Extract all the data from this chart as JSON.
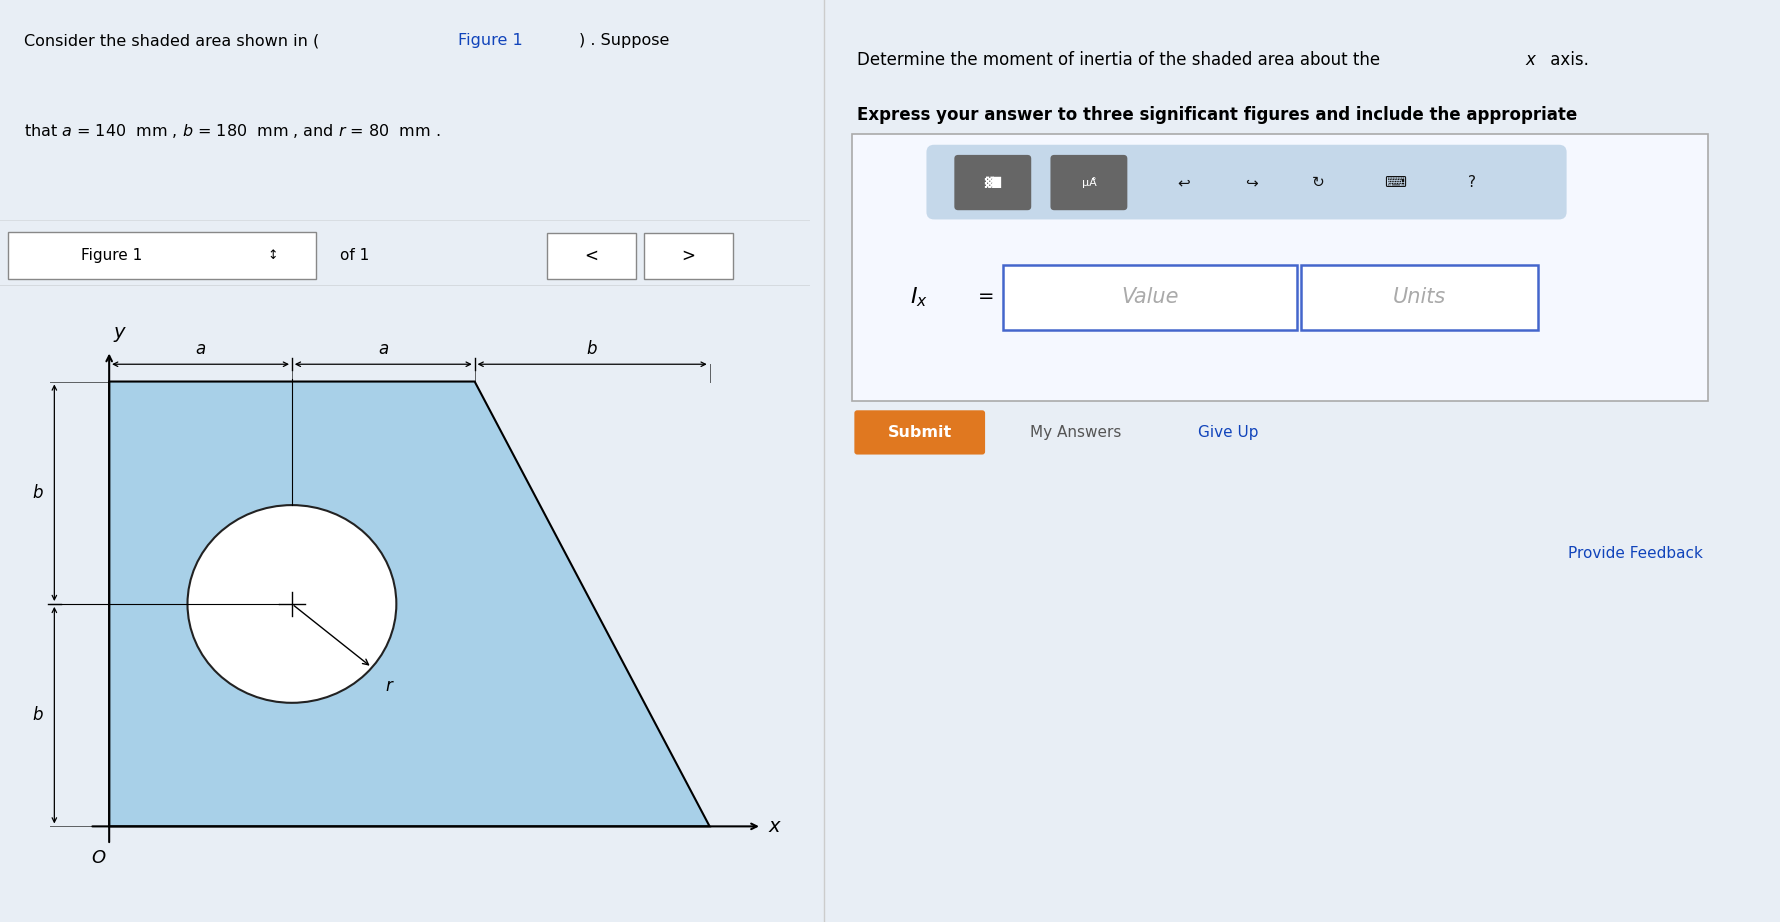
{
  "fig_bg": "#e8eef5",
  "left_top_bg": "#dce8f2",
  "left_fig_bg": "#e0ecf5",
  "right_bg": "#ffffff",
  "toolbar_bg": "#c5d8ea",
  "shape_fill": "#a8d0e8",
  "shape_edge": "#000000",
  "circle_fill": "#ffffff",
  "circle_edge": "#222222",
  "submit_color": "#e07820",
  "box_border": "#4466cc",
  "figure_bar_bg": "#cccccc",
  "nav_btn_bg": "#e0e0e0",
  "icon_bg": "#666666",
  "right_title1": "Determine the moment of inertia of the shaded area about the ",
  "right_title1_x": "x",
  "right_title1_end": " axis.",
  "right_title2": "Express your answer to three significant figures and include the appropriate",
  "value_text": "Value",
  "units_text": "Units",
  "submit_text": "Submit",
  "myanswers_text": "My Answers",
  "giveup_text": "Give Up",
  "feedback_text": "Provide Feedback",
  "figure_label": "Figure 1",
  "of1_text": "of 1",
  "a_mm": 140,
  "b_mm": 180,
  "r_mm": 80
}
